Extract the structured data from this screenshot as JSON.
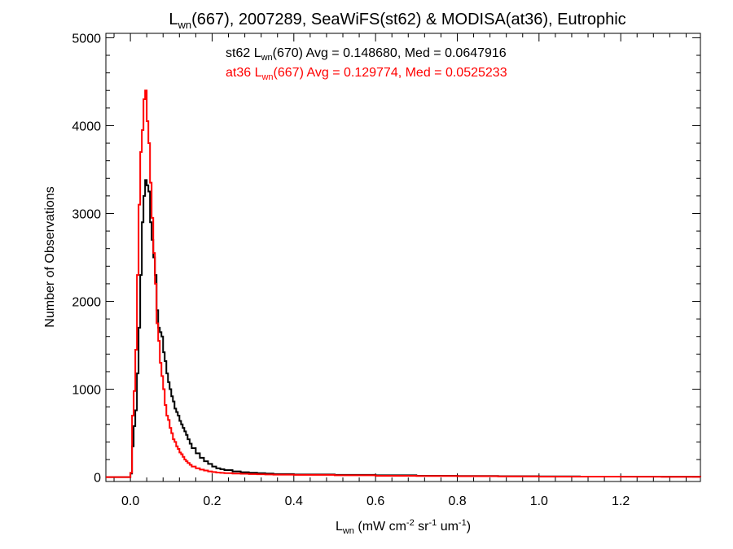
{
  "chart_data": {
    "type": "line",
    "step": true,
    "title": {
      "main": "L",
      "sub": "wn",
      "rest": "(667), 2007289, SeaWiFS(st62) & MODISA(at36), Eutrophic"
    },
    "xlabel": {
      "main": "L",
      "sub": "wn",
      "part1": " (mW cm",
      "sup1": "-2",
      "part2": " sr",
      "sup2": "-1",
      "part3": " um",
      "sup3": "-1",
      "part4": ")"
    },
    "ylabel": "Number of Observations",
    "xlim": [
      -0.06,
      1.395
    ],
    "ylim": [
      -50,
      5050
    ],
    "xticks": [
      0.0,
      0.2,
      0.4,
      0.6,
      0.8,
      1.0,
      1.2
    ],
    "xtick_labels": [
      "0.0",
      "0.2",
      "0.4",
      "0.6",
      "0.8",
      "1.0",
      "1.2"
    ],
    "yticks": [
      0,
      1000,
      2000,
      3000,
      4000,
      5000
    ],
    "ytick_labels": [
      "0",
      "1000",
      "2000",
      "3000",
      "4000",
      "5000"
    ],
    "series": [
      {
        "name": "st62",
        "color": "#000000",
        "stats": {
          "prefix": "st62 L",
          "sub": "wn",
          "text": "(670) Avg = 0.148680, Med = 0.0647916"
        },
        "x": [
          -0.06,
          0.0,
          0.004,
          0.008,
          0.012,
          0.016,
          0.02,
          0.024,
          0.028,
          0.032,
          0.036,
          0.04,
          0.044,
          0.048,
          0.052,
          0.056,
          0.06,
          0.064,
          0.068,
          0.072,
          0.076,
          0.08,
          0.084,
          0.088,
          0.092,
          0.096,
          0.1,
          0.104,
          0.108,
          0.112,
          0.116,
          0.12,
          0.124,
          0.128,
          0.132,
          0.136,
          0.14,
          0.145,
          0.15,
          0.16,
          0.17,
          0.18,
          0.19,
          0.2,
          0.21,
          0.22,
          0.23,
          0.25,
          0.27,
          0.29,
          0.31,
          0.33,
          0.35,
          0.4,
          0.5,
          0.6,
          0.7,
          0.8,
          0.9,
          1.0,
          1.1,
          1.2,
          1.3,
          1.395
        ],
        "y": [
          0,
          40,
          350,
          580,
          760,
          1180,
          1700,
          2300,
          2900,
          3200,
          3380,
          3320,
          3250,
          2900,
          2700,
          2500,
          2300,
          1900,
          1700,
          1650,
          1600,
          1420,
          1320,
          1180,
          1080,
          1000,
          920,
          860,
          780,
          740,
          700,
          640,
          600,
          560,
          520,
          480,
          430,
          380,
          330,
          270,
          220,
          180,
          150,
          120,
          100,
          90,
          80,
          65,
          55,
          50,
          45,
          40,
          35,
          30,
          25,
          20,
          15,
          12,
          10,
          8,
          6,
          5,
          4,
          3
        ]
      },
      {
        "name": "at36",
        "color": "#ff0000",
        "stats": {
          "prefix": "at36 L",
          "sub": "wn",
          "text": "(667) Avg = 0.129774, Med = 0.0525233"
        },
        "x": [
          -0.06,
          0.0,
          0.004,
          0.008,
          0.012,
          0.016,
          0.02,
          0.024,
          0.028,
          0.032,
          0.036,
          0.04,
          0.044,
          0.048,
          0.052,
          0.056,
          0.06,
          0.064,
          0.068,
          0.072,
          0.076,
          0.08,
          0.084,
          0.088,
          0.092,
          0.096,
          0.1,
          0.104,
          0.108,
          0.112,
          0.116,
          0.12,
          0.124,
          0.128,
          0.132,
          0.136,
          0.14,
          0.145,
          0.15,
          0.16,
          0.17,
          0.18,
          0.19,
          0.2,
          0.21,
          0.22,
          0.23,
          0.25,
          0.27,
          0.29,
          0.31,
          0.33,
          0.35,
          0.4,
          0.5,
          0.6,
          0.7,
          0.8,
          0.9,
          1.0,
          1.1,
          1.2,
          1.3,
          1.395
        ],
        "y": [
          0,
          50,
          700,
          980,
          1450,
          2300,
          3100,
          3700,
          3950,
          4300,
          4400,
          4050,
          3800,
          3350,
          2950,
          2550,
          2200,
          1750,
          1550,
          1300,
          1150,
          1000,
          820,
          700,
          650,
          560,
          500,
          430,
          400,
          350,
          320,
          280,
          260,
          230,
          200,
          180,
          160,
          140,
          120,
          100,
          85,
          75,
          65,
          58,
          52,
          48,
          45,
          40,
          38,
          35,
          32,
          30,
          28,
          25,
          20,
          15,
          12,
          10,
          8,
          6,
          5,
          4,
          3,
          2
        ]
      }
    ]
  }
}
